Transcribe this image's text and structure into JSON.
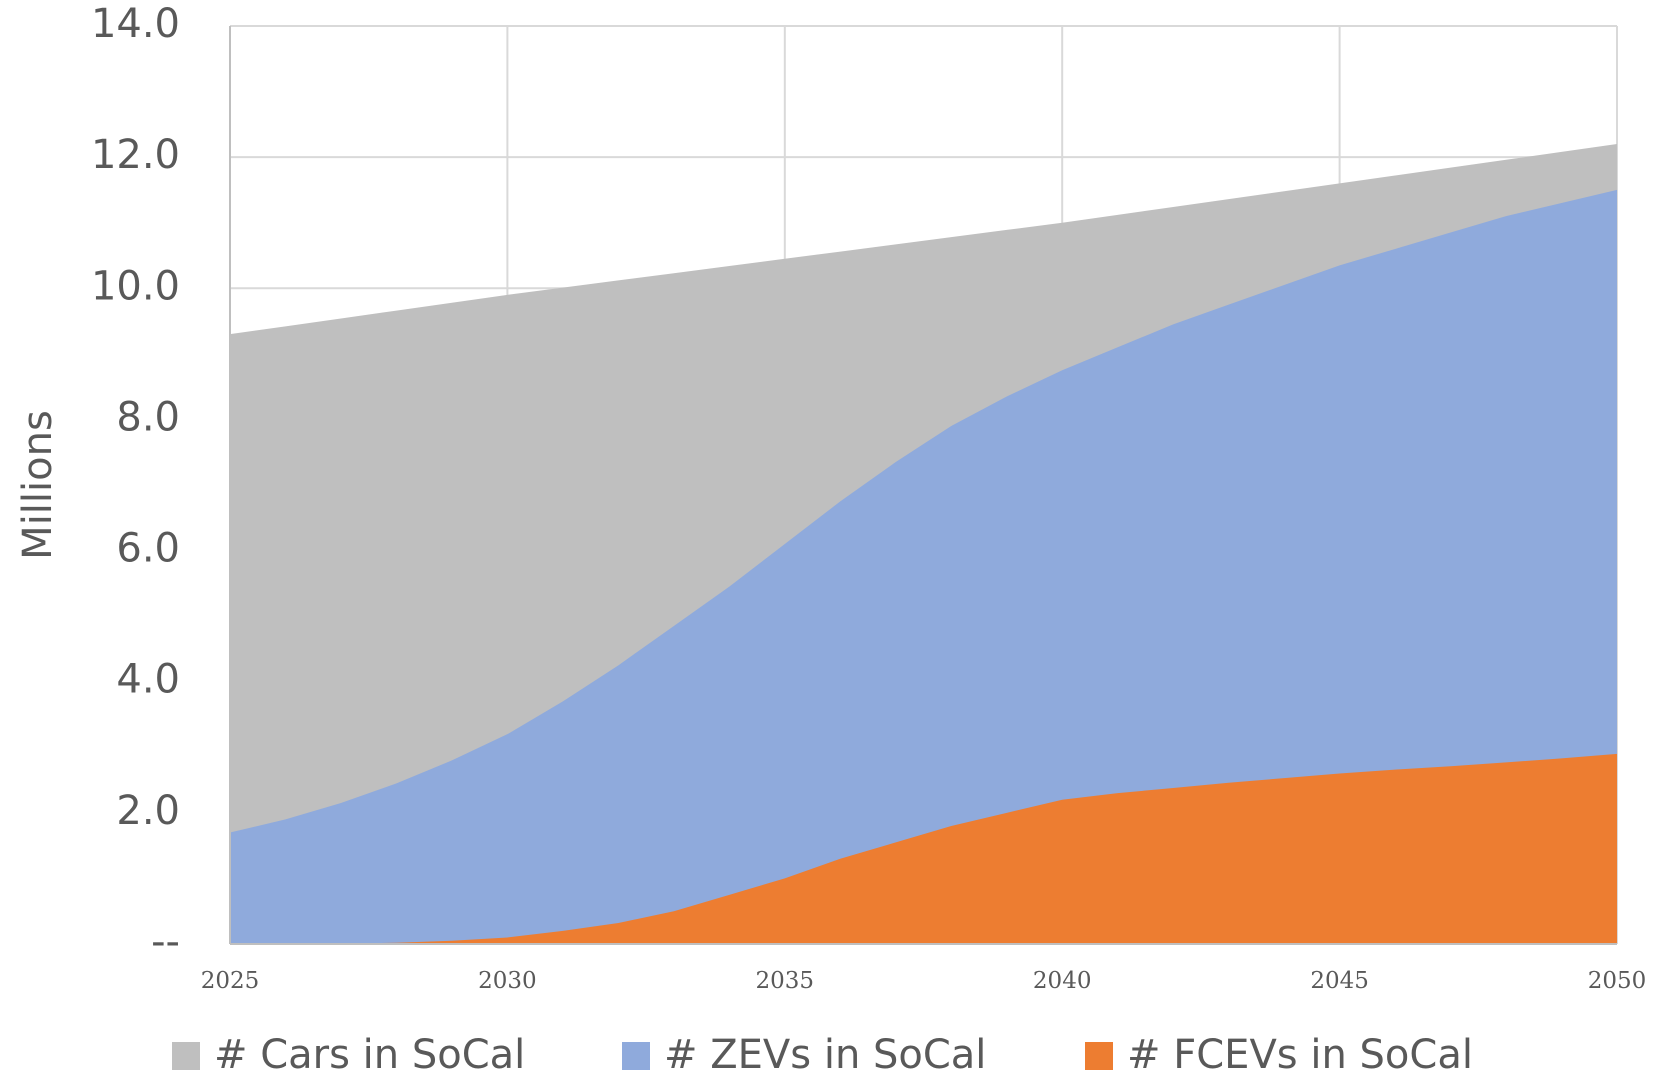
{
  "chart_data": {
    "type": "area",
    "y_label": "Millions",
    "x": [
      2025,
      2026,
      2027,
      2028,
      2029,
      2030,
      2031,
      2032,
      2033,
      2034,
      2035,
      2036,
      2037,
      2038,
      2039,
      2040,
      2041,
      2042,
      2043,
      2044,
      2045,
      2046,
      2047,
      2048,
      2049,
      2050
    ],
    "series": [
      {
        "name": "# Cars in SoCal",
        "color": "#bfbfbf",
        "values": [
          9.3,
          9.42,
          9.54,
          9.66,
          9.78,
          9.9,
          10.01,
          10.12,
          10.23,
          10.34,
          10.45,
          10.56,
          10.67,
          10.78,
          10.89,
          11.0,
          11.12,
          11.24,
          11.36,
          11.48,
          11.6,
          11.72,
          11.84,
          11.96,
          12.08,
          12.2
        ]
      },
      {
        "name": "# ZEVs in SoCal",
        "color": "#8faadc",
        "values": [
          1.7,
          1.9,
          2.15,
          2.45,
          2.8,
          3.2,
          3.7,
          4.25,
          4.85,
          5.45,
          6.1,
          6.75,
          7.35,
          7.9,
          8.35,
          8.75,
          9.1,
          9.45,
          9.75,
          10.05,
          10.35,
          10.6,
          10.85,
          11.1,
          11.3,
          11.5
        ]
      },
      {
        "name": "# FCEVs in SoCal",
        "color": "#ed7d31",
        "values": [
          0,
          0,
          0,
          0.02,
          0.05,
          0.1,
          0.2,
          0.32,
          0.5,
          0.75,
          1.0,
          1.3,
          1.55,
          1.8,
          2.0,
          2.2,
          2.3,
          2.38,
          2.46,
          2.53,
          2.6,
          2.66,
          2.71,
          2.77,
          2.83,
          2.9
        ]
      }
    ],
    "xlim": [
      2025,
      2050
    ],
    "xticks": [
      2025,
      2030,
      2035,
      2040,
      2045,
      2050
    ],
    "ylim": [
      0,
      14
    ],
    "yticks": [
      {
        "value": 0,
        "label": "--"
      },
      {
        "value": 2,
        "label": "2.0"
      },
      {
        "value": 4,
        "label": "4.0"
      },
      {
        "value": 6,
        "label": "6.0"
      },
      {
        "value": 8,
        "label": "8.0"
      },
      {
        "value": 10,
        "label": "10.0"
      },
      {
        "value": 12,
        "label": "12.0"
      },
      {
        "value": 14,
        "label": "14.0"
      }
    ],
    "grid": true,
    "legend": "bottom"
  }
}
